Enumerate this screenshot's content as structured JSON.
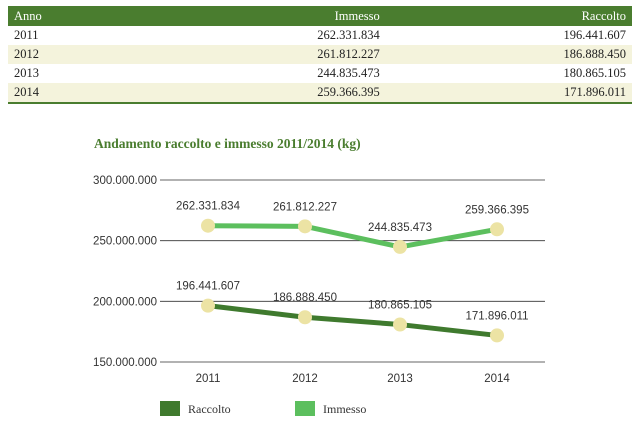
{
  "table": {
    "headers": [
      "Anno",
      "Immesso",
      "Raccolto"
    ],
    "rows": [
      [
        "2011",
        "262.331.834",
        "196.441.607"
      ],
      [
        "2012",
        "261.812.227",
        "186.888.450"
      ],
      [
        "2013",
        "244.835.473",
        "180.865.105"
      ],
      [
        "2014",
        "259.366.395",
        "171.896.011"
      ]
    ]
  },
  "colors": {
    "header_bg": "#4a7d2f",
    "raccolto": "#3f7a2e",
    "immesso": "#5cbf5e",
    "marker": "#ece3a4",
    "row_alt": "#f4f3dc"
  },
  "chart_data": {
    "type": "line",
    "title": "Andamento raccolto e immesso 2011/2014 (kg)",
    "categories": [
      "2011",
      "2012",
      "2013",
      "2014"
    ],
    "ylim": [
      150000000,
      300000000
    ],
    "yticks": [
      {
        "value": 300000000,
        "label": "300.000.000"
      },
      {
        "value": 250000000,
        "label": "250.000.000"
      },
      {
        "value": 200000000,
        "label": "200.000.000"
      },
      {
        "value": 150000000,
        "label": "150.000.000"
      }
    ],
    "series": [
      {
        "name": "Immesso",
        "values": [
          262331834,
          261812227,
          244835473,
          259366395
        ],
        "labels": [
          "262.331.834",
          "261.812.227",
          "244.835.473",
          "259.366.395"
        ]
      },
      {
        "name": "Raccolto",
        "values": [
          196441607,
          186888450,
          180865105,
          171896011
        ],
        "labels": [
          "196.441.607",
          "186.888.450",
          "180.865.105",
          "171.896.011"
        ]
      }
    ],
    "legend": [
      "Raccolto",
      "Immesso"
    ]
  }
}
